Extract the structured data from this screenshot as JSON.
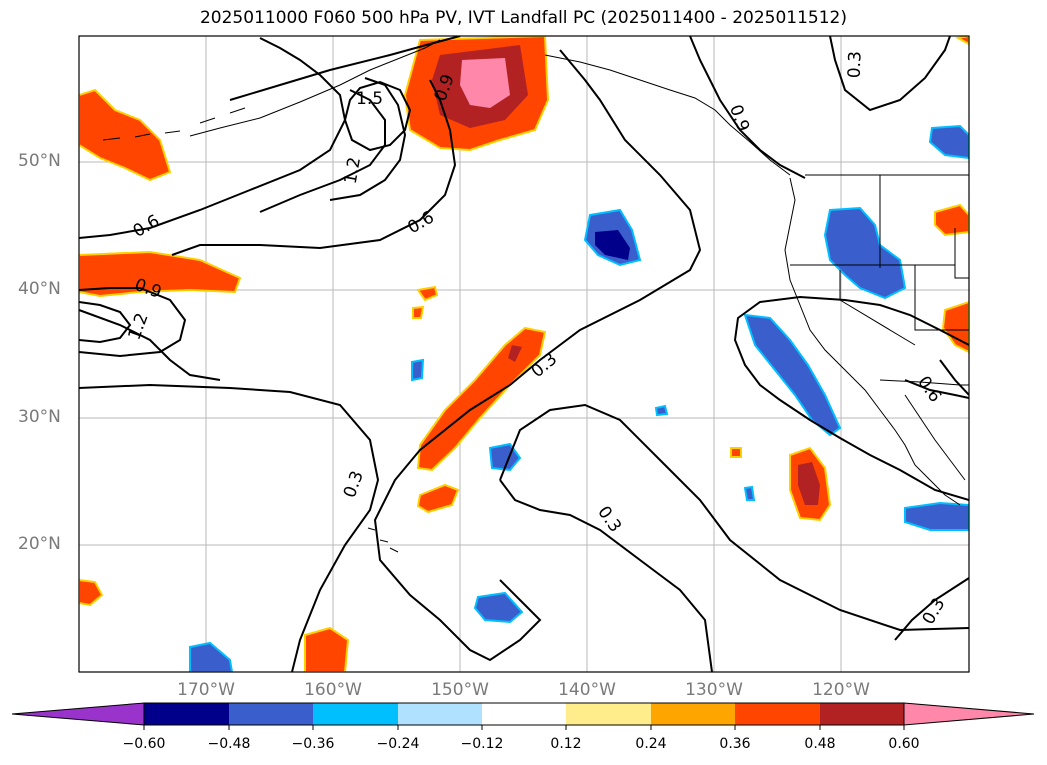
{
  "title": "2025011000 F060 500 hPa PV, IVT Landfall PC (2025011400 - 2025011512)",
  "lat_labels": [
    "50°N",
    "40°N",
    "30°N",
    "20°N"
  ],
  "lon_labels": [
    "170°W",
    "160°W",
    "150°W",
    "140°W",
    "130°W",
    "120°W"
  ],
  "contour_labels": [
    "1.5",
    "0.9",
    "1.2",
    "0.6",
    "0.6",
    "0.9",
    "1.2",
    "0.3",
    "0.3",
    "0.3",
    "0.6",
    "0.3",
    "0.3",
    "0.9"
  ],
  "colorbar": {
    "ticks": [
      "−0.60",
      "−0.48",
      "−0.36",
      "−0.24",
      "−0.12",
      "0.12",
      "0.24",
      "0.36",
      "0.48",
      "0.60"
    ],
    "colors": {
      "under": "#9933cc",
      "bins": [
        "#00008b",
        "#3a5fcd",
        "#00bfff",
        "#b0e2ff",
        "#ffffff",
        "#ffec8b",
        "#ffa500",
        "#ff4500",
        "#b22222",
        "#ff88aa"
      ],
      "over": "#ff88aa"
    }
  }
}
